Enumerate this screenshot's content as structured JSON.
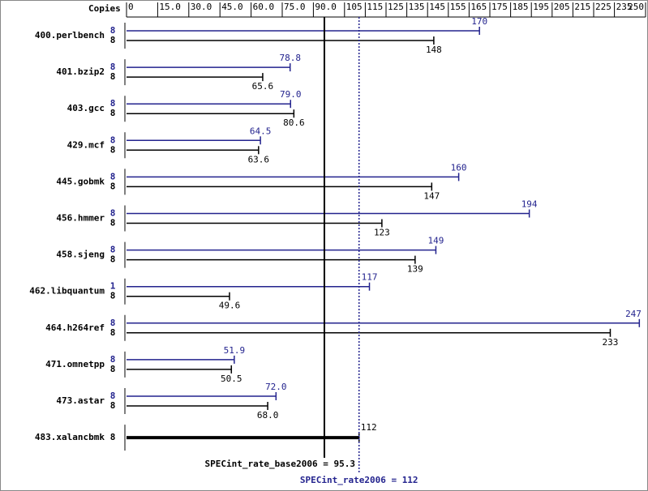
{
  "chart_data": {
    "type": "bar",
    "orientation": "horizontal",
    "copies_label": "Copies",
    "categories": [
      "400.perlbench",
      "401.bzip2",
      "403.gcc",
      "429.mcf",
      "445.gobmk",
      "456.hmmer",
      "458.sjeng",
      "462.libquantum",
      "464.h264ref",
      "471.omnetpp",
      "473.astar",
      "483.xalancbmk"
    ],
    "series": [
      {
        "color": "#23238e",
        "copies": [
          8,
          8,
          8,
          8,
          8,
          8,
          8,
          1,
          8,
          8,
          8,
          null
        ],
        "values": [
          170,
          78.8,
          79.0,
          64.5,
          160,
          194,
          149,
          117,
          247,
          51.9,
          72.0,
          null
        ],
        "value_labels": [
          "170",
          "78.8",
          "79.0",
          "64.5",
          "160",
          "194",
          "149",
          "117",
          "247",
          "51.9",
          "72.0",
          null
        ]
      },
      {
        "color": "#000000",
        "copies": [
          8,
          8,
          8,
          8,
          8,
          8,
          8,
          8,
          8,
          8,
          8,
          8
        ],
        "values": [
          148,
          65.6,
          80.6,
          63.6,
          147,
          123,
          139,
          49.6,
          233,
          50.5,
          68.0,
          112
        ],
        "value_labels": [
          "148",
          "65.6",
          "80.6",
          "63.6",
          "147",
          "123",
          "139",
          "49.6",
          "233",
          "50.5",
          "68.0",
          "112"
        ]
      }
    ],
    "reference_lines": [
      {
        "label": "SPECint_rate_base2006 = 95.3",
        "value": 95.3,
        "color": "#000000",
        "style": "solid"
      },
      {
        "label": "SPECint_rate2006 = 112",
        "value": 112,
        "color": "#23238e",
        "style": "dotted"
      }
    ],
    "xlim": [
      0,
      250
    ],
    "xticks": [
      0,
      {
        "value": 15,
        "label": "15.0"
      },
      {
        "value": 30,
        "label": "30.0"
      },
      {
        "value": 45,
        "label": "45.0"
      },
      {
        "value": 60,
        "label": "60.0"
      },
      {
        "value": 75,
        "label": "75.0"
      },
      {
        "value": 90,
        "label": "90.0"
      },
      105,
      115,
      125,
      135,
      145,
      155,
      165,
      175,
      185,
      195,
      205,
      215,
      225,
      235,
      250
    ]
  }
}
